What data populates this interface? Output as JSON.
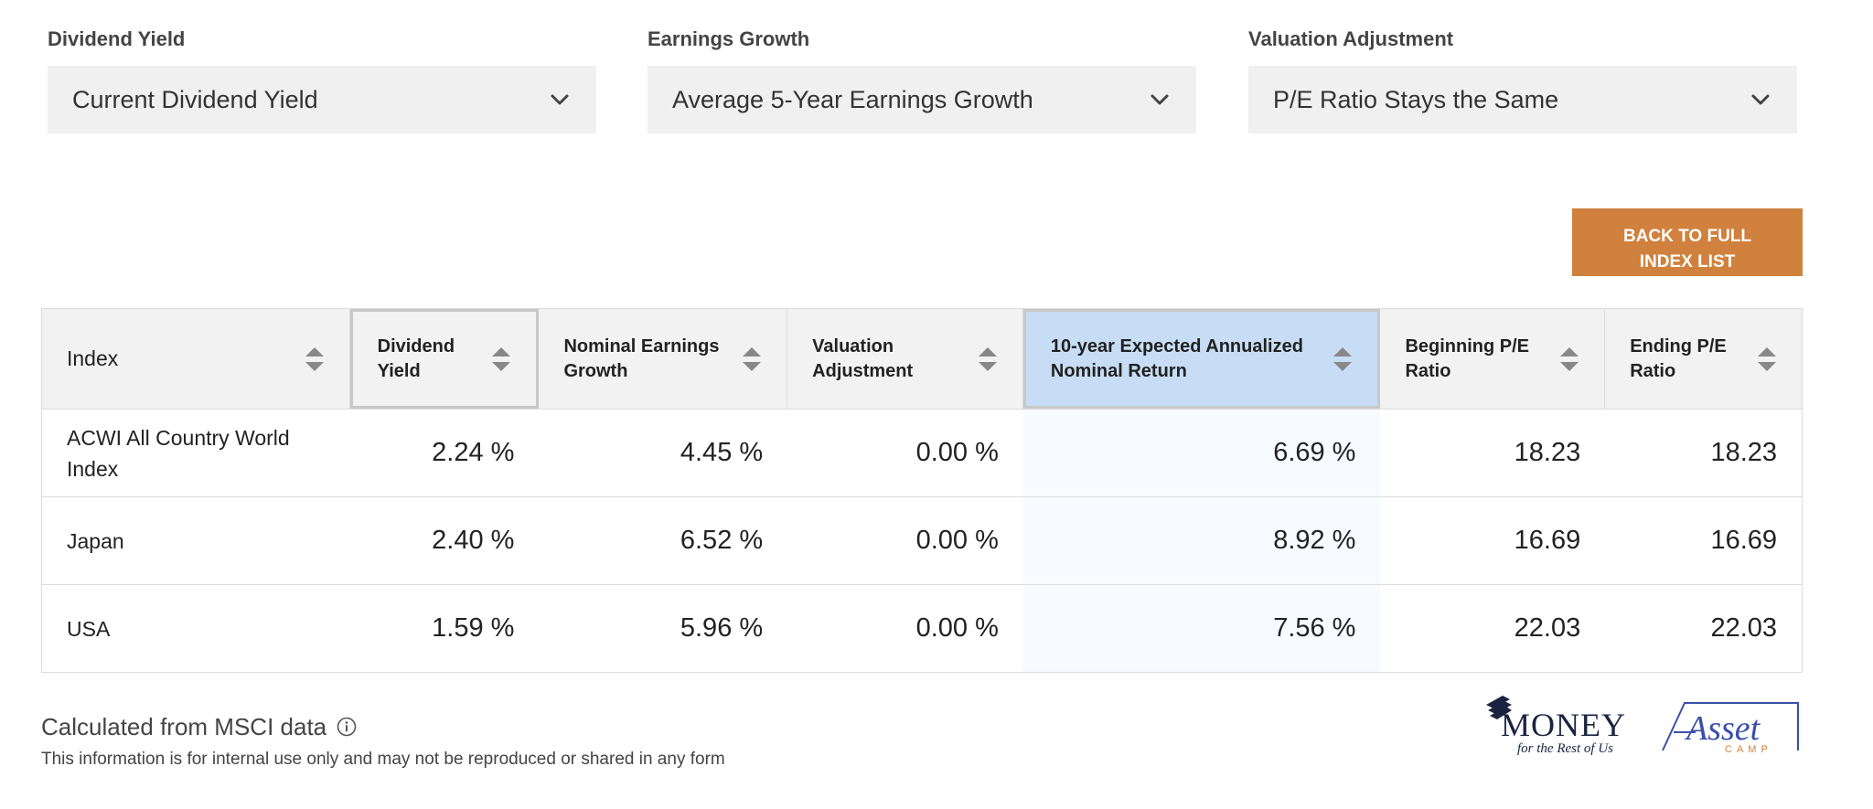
{
  "filters": [
    {
      "label": "Dividend Yield",
      "value": "Current Dividend Yield"
    },
    {
      "label": "Earnings Growth",
      "value": "Average 5-Year Earnings Growth"
    },
    {
      "label": "Valuation Adjustment",
      "value": "P/E Ratio Stays the Same"
    }
  ],
  "back_button": {
    "line1": "BACK TO FULL",
    "line2": "INDEX LIST"
  },
  "table": {
    "headers": [
      {
        "line1": "Index",
        "line2": ""
      },
      {
        "line1": "Dividend",
        "line2": "Yield"
      },
      {
        "line1": "Nominal Earnings",
        "line2": "Growth"
      },
      {
        "line1": "Valuation",
        "line2": "Adjustment"
      },
      {
        "line1": "10-year Expected Annualized",
        "line2": "Nominal Return"
      },
      {
        "line1": "Beginning P/E",
        "line2": "Ratio"
      },
      {
        "line1": "Ending P/E",
        "line2": "Ratio"
      }
    ],
    "rows": [
      {
        "index_line1": "ACWI All Country World",
        "index_line2": "Index",
        "dividend_yield": "2.24 %",
        "earnings_growth": "4.45 %",
        "valuation_adjustment": "0.00 %",
        "expected_return": "6.69 %",
        "beginning_pe": "18.23",
        "ending_pe": "18.23"
      },
      {
        "index_line1": "Japan",
        "index_line2": "",
        "dividend_yield": "2.40 %",
        "earnings_growth": "6.52 %",
        "valuation_adjustment": "0.00 %",
        "expected_return": "8.92 %",
        "beginning_pe": "16.69",
        "ending_pe": "16.69"
      },
      {
        "index_line1": "USA",
        "index_line2": "",
        "dividend_yield": "1.59 %",
        "earnings_growth": "5.96 %",
        "valuation_adjustment": "0.00 %",
        "expected_return": "7.56 %",
        "beginning_pe": "22.03",
        "ending_pe": "22.03"
      }
    ]
  },
  "footer": {
    "source": "Calculated from MSCI data",
    "disclaimer": "This information is for internal use only and may not be reproduced or shared in any form"
  },
  "logos": {
    "money": {
      "word": "MONEY",
      "tagline": "for the Rest of Us"
    },
    "asset": {
      "word": "Asset",
      "sub": "CAMP"
    }
  },
  "colors": {
    "accent_button": "#d0813d",
    "active_column": "#c6ddf5",
    "money_logo": "#1a2440",
    "asset_logo": "#3a4fa8",
    "asset_sub": "#d0813d"
  }
}
